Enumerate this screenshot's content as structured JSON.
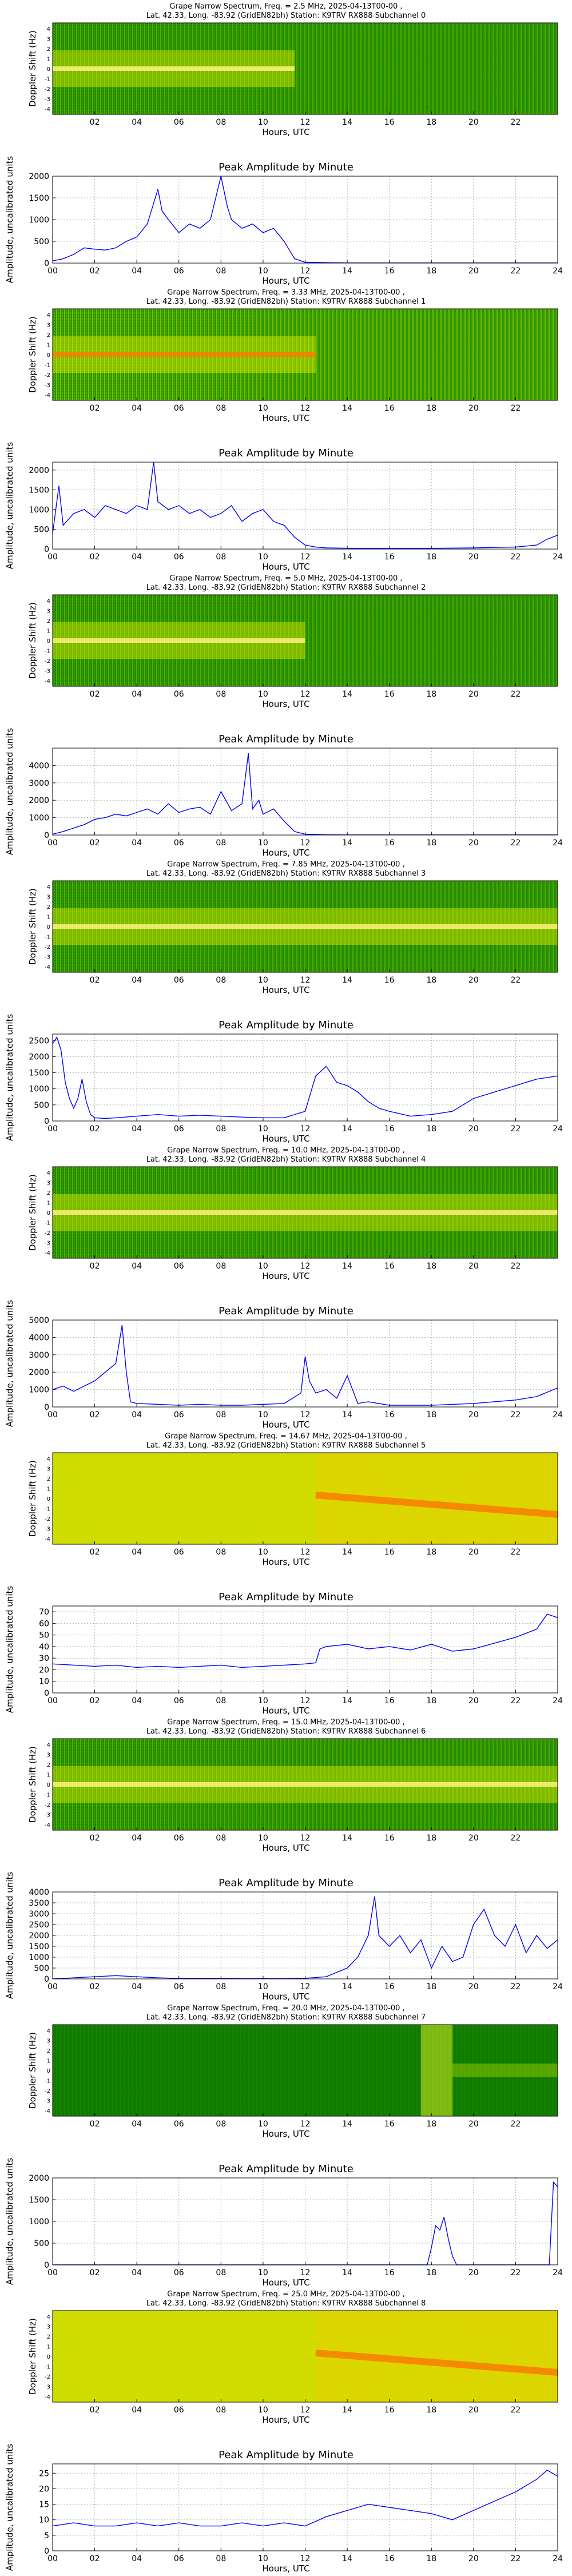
{
  "page": {
    "background": "#ffffff"
  },
  "common": {
    "xlabel": "Hours, UTC",
    "spec_ylabel": "Doppler Shift (Hz)",
    "amp_title": "Peak Amplitude by Minute",
    "amp_ylabel": "Amplitude, uncalibrated units",
    "spec_ticks": [
      "02",
      "04",
      "06",
      "08",
      "10",
      "12",
      "14",
      "16",
      "18",
      "20",
      "22"
    ],
    "spec_yticks": [
      "4",
      "3",
      "2",
      "1",
      "0",
      "-1",
      "-2",
      "-3",
      "-4"
    ],
    "amp_xticks": [
      "00",
      "02",
      "04",
      "06",
      "08",
      "10",
      "12",
      "14",
      "16",
      "18",
      "20",
      "22",
      "24"
    ],
    "line_color": "#0000ff"
  },
  "subchannels": [
    {
      "spec_title1": "Grape Narrow Spectrum, Freq. = 2.5 MHz, 2025-04-13T00-00 ,",
      "spec_title2": "Lat.  42.33, Long. -83.92 (GridEN82bh) Station: K9TRV RX888 Subchannel 0",
      "spec_style": "green",
      "active_until": 11.5,
      "chart_data": {
        "type": "line",
        "title": "Peak Amplitude by Minute",
        "xlabel": "Hours, UTC",
        "ylabel": "Amplitude, uncalibrated units",
        "xlim": [
          0,
          24
        ],
        "ylim": [
          0,
          2000
        ],
        "yticks": [
          0,
          500,
          1000,
          1500,
          2000
        ],
        "x": [
          0,
          0.5,
          1,
          1.5,
          2,
          2.5,
          3,
          3.5,
          4,
          4.5,
          5,
          5.2,
          5.5,
          6,
          6.5,
          7,
          7.5,
          8,
          8.3,
          8.5,
          9,
          9.5,
          10,
          10.5,
          11,
          11.5,
          12,
          13,
          14,
          16,
          18,
          20,
          22,
          24
        ],
        "y": [
          50,
          100,
          200,
          350,
          320,
          300,
          350,
          500,
          600,
          900,
          1700,
          1200,
          1000,
          700,
          900,
          800,
          1000,
          2000,
          1300,
          1000,
          800,
          900,
          700,
          800,
          500,
          100,
          20,
          10,
          5,
          5,
          5,
          5,
          5,
          5
        ]
      }
    },
    {
      "spec_title1": "Grape Narrow Spectrum, Freq. = 3.33 MHz, 2025-04-13T00-00 ,",
      "spec_title2": "Lat.  42.33, Long. -83.92 (GridEN82bh) Station: K9TRV RX888 Subchannel 1",
      "spec_style": "orangeline",
      "active_until": 12.5,
      "chart_data": {
        "type": "line",
        "title": "Peak Amplitude by Minute",
        "xlabel": "Hours, UTC",
        "ylabel": "Amplitude, uncalibrated units",
        "xlim": [
          0,
          24
        ],
        "ylim": [
          0,
          2200
        ],
        "yticks": [
          0,
          500,
          1000,
          1500,
          2000
        ],
        "x": [
          0,
          0.3,
          0.5,
          1,
          1.5,
          2,
          2.5,
          3,
          3.5,
          4,
          4.5,
          4.8,
          5,
          5.5,
          6,
          6.5,
          7,
          7.5,
          8,
          8.5,
          9,
          9.5,
          10,
          10.5,
          11,
          11.5,
          12,
          12.5,
          13,
          14,
          16,
          18,
          20,
          22,
          23,
          23.5,
          24
        ],
        "y": [
          400,
          1600,
          600,
          900,
          1000,
          800,
          1100,
          1000,
          900,
          1100,
          1000,
          2200,
          1200,
          1000,
          1100,
          900,
          1000,
          800,
          900,
          1100,
          700,
          900,
          1000,
          700,
          600,
          300,
          100,
          50,
          30,
          20,
          20,
          20,
          30,
          50,
          100,
          250,
          350
        ]
      }
    },
    {
      "spec_title1": "Grape Narrow Spectrum, Freq. = 5.0 MHz, 2025-04-13T00-00 ,",
      "spec_title2": "Lat.  42.33, Long. -83.92 (GridEN82bh) Station: K9TRV RX888 Subchannel 2",
      "spec_style": "green",
      "active_until": 12.0,
      "chart_data": {
        "type": "line",
        "title": "Peak Amplitude by Minute",
        "xlabel": "Hours, UTC",
        "ylabel": "Amplitude, uncalibrated units",
        "xlim": [
          0,
          24
        ],
        "ylim": [
          0,
          5000
        ],
        "yticks": [
          0,
          1000,
          2000,
          3000,
          4000
        ],
        "x": [
          0,
          0.5,
          1,
          1.5,
          2,
          2.5,
          3,
          3.5,
          4,
          4.5,
          5,
          5.5,
          6,
          6.5,
          7,
          7.5,
          8,
          8.5,
          9,
          9.3,
          9.5,
          9.8,
          10,
          10.5,
          11,
          11.5,
          12,
          13,
          14,
          16,
          18,
          20,
          22,
          24
        ],
        "y": [
          50,
          200,
          400,
          600,
          900,
          1000,
          1200,
          1100,
          1300,
          1500,
          1200,
          1800,
          1300,
          1500,
          1600,
          1200,
          2500,
          1400,
          1800,
          4700,
          1500,
          2000,
          1200,
          1500,
          800,
          200,
          50,
          20,
          10,
          10,
          10,
          10,
          10,
          10
        ]
      }
    },
    {
      "spec_title1": "Grape Narrow Spectrum, Freq. = 7.85 MHz, 2025-04-13T00-00 ,",
      "spec_title2": "Lat.  42.33, Long. -83.92 (GridEN82bh) Station: K9TRV RX888 Subchannel 3",
      "spec_style": "green",
      "active_until": 24,
      "chart_data": {
        "type": "line",
        "title": "Peak Amplitude by Minute",
        "xlabel": "Hours, UTC",
        "ylabel": "Amplitude, uncalibrated units",
        "xlim": [
          0,
          24
        ],
        "ylim": [
          0,
          2700
        ],
        "yticks": [
          0,
          500,
          1000,
          1500,
          2000,
          2500
        ],
        "x": [
          0,
          0.2,
          0.4,
          0.6,
          0.8,
          1,
          1.2,
          1.4,
          1.6,
          1.8,
          2,
          2.5,
          3,
          4,
          5,
          6,
          7,
          8,
          9,
          10,
          11,
          12,
          12.5,
          13,
          13.5,
          14,
          14.5,
          15,
          15.5,
          16,
          17,
          18,
          19,
          20,
          21,
          22,
          23,
          24
        ],
        "y": [
          2400,
          2600,
          2200,
          1200,
          700,
          400,
          700,
          1300,
          600,
          200,
          100,
          80,
          100,
          150,
          200,
          150,
          180,
          150,
          120,
          100,
          100,
          300,
          1400,
          1700,
          1200,
          1100,
          900,
          600,
          400,
          300,
          150,
          200,
          300,
          700,
          900,
          1100,
          1300,
          1400
        ]
      }
    },
    {
      "spec_title1": "Grape Narrow Spectrum, Freq. = 10.0 MHz, 2025-04-13T00-00 ,",
      "spec_title2": "Lat.  42.33, Long. -83.92 (GridEN82bh) Station: K9TRV RX888 Subchannel 4",
      "spec_style": "green",
      "active_until": 24,
      "chart_data": {
        "type": "line",
        "title": "Peak Amplitude by Minute",
        "xlabel": "Hours, UTC",
        "ylabel": "Amplitude, uncalibrated units",
        "xlim": [
          0,
          24
        ],
        "ylim": [
          0,
          5000
        ],
        "yticks": [
          0,
          1000,
          2000,
          3000,
          4000,
          5000
        ],
        "x": [
          0,
          0.5,
          1,
          1.5,
          2,
          2.5,
          3,
          3.3,
          3.5,
          3.7,
          4,
          5,
          6,
          7,
          8,
          9,
          10,
          11,
          11.8,
          12,
          12.2,
          12.5,
          13,
          13.5,
          14,
          14.5,
          15,
          16,
          18,
          20,
          22,
          23,
          24
        ],
        "y": [
          1000,
          1200,
          900,
          1200,
          1500,
          2000,
          2500,
          4700,
          2000,
          300,
          200,
          150,
          100,
          150,
          100,
          100,
          150,
          200,
          800,
          2900,
          1500,
          800,
          1000,
          500,
          1800,
          200,
          300,
          100,
          100,
          200,
          400,
          600,
          1100
        ]
      }
    },
    {
      "spec_title1": "Grape Narrow Spectrum, Freq. = 14.67 MHz, 2025-04-13T00-00 ,",
      "spec_title2": "Lat.  42.33, Long. -83.92 (GridEN82bh) Station: K9TRV RX888 Subchannel 5",
      "spec_style": "yellow",
      "active_until": 24,
      "chart_data": {
        "type": "line",
        "title": "Peak Amplitude by Minute",
        "xlabel": "Hours, UTC",
        "ylabel": "Amplitude, uncalibrated units",
        "xlim": [
          0,
          24
        ],
        "ylim": [
          0,
          75
        ],
        "yticks": [
          0,
          10,
          20,
          30,
          40,
          50,
          60,
          70
        ],
        "x": [
          0,
          1,
          2,
          3,
          4,
          5,
          6,
          7,
          8,
          9,
          10,
          11,
          12,
          12.5,
          12.7,
          13,
          14,
          15,
          16,
          17,
          18,
          19,
          20,
          21,
          22,
          23,
          23.5,
          24
        ],
        "y": [
          25,
          24,
          23,
          24,
          22,
          23,
          22,
          23,
          24,
          22,
          23,
          24,
          25,
          26,
          38,
          40,
          42,
          38,
          40,
          37,
          42,
          36,
          38,
          43,
          48,
          55,
          68,
          65
        ]
      }
    },
    {
      "spec_title1": "Grape Narrow Spectrum, Freq. = 15.0 MHz, 2025-04-13T00-00 ,",
      "spec_title2": "Lat.  42.33, Long. -83.92 (GridEN82bh) Station: K9TRV RX888 Subchannel 6",
      "spec_style": "green",
      "active_until": 24,
      "chart_data": {
        "type": "line",
        "title": "Peak Amplitude by Minute",
        "xlabel": "Hours, UTC",
        "ylabel": "Amplitude, uncalibrated units",
        "xlim": [
          0,
          24
        ],
        "ylim": [
          0,
          4000
        ],
        "yticks": [
          0,
          500,
          1000,
          1500,
          2000,
          2500,
          3000,
          3500,
          4000
        ],
        "x": [
          0,
          1,
          2,
          3,
          4,
          5,
          6,
          7,
          8,
          9,
          10,
          11,
          12,
          13,
          14,
          14.5,
          15,
          15.3,
          15.5,
          16,
          16.5,
          17,
          17.5,
          18,
          18.5,
          19,
          19.5,
          20,
          20.5,
          21,
          21.5,
          22,
          22.5,
          23,
          23.5,
          24
        ],
        "y": [
          0,
          50,
          100,
          150,
          100,
          50,
          20,
          20,
          20,
          10,
          10,
          10,
          30,
          100,
          500,
          1000,
          2000,
          3800,
          2000,
          1500,
          2000,
          1200,
          1800,
          500,
          1500,
          800,
          1000,
          2500,
          3200,
          2000,
          1500,
          2500,
          1200,
          2000,
          1400,
          1800
        ]
      }
    },
    {
      "spec_title1": "Grape Narrow Spectrum, Freq. = 20.0 MHz, 2025-04-13T00-00 ,",
      "spec_title2": "Lat.  42.33, Long. -83.92 (GridEN82bh) Station: K9TRV RX888 Subchannel 7",
      "spec_style": "darkgreen",
      "active_until": 24,
      "chart_data": {
        "type": "line",
        "title": "Peak Amplitude by Minute",
        "xlabel": "Hours, UTC",
        "ylabel": "Amplitude, uncalibrated units",
        "xlim": [
          0,
          24
        ],
        "ylim": [
          0,
          2000
        ],
        "yticks": [
          0,
          500,
          1000,
          1500,
          2000
        ],
        "x": [
          0,
          4,
          8,
          12,
          16,
          17.8,
          18,
          18.2,
          18.4,
          18.6,
          18.8,
          19,
          19.2,
          20,
          22,
          23.6,
          23.8,
          24
        ],
        "y": [
          0,
          0,
          0,
          0,
          0,
          0,
          400,
          900,
          800,
          1100,
          600,
          200,
          0,
          0,
          0,
          0,
          1900,
          1800
        ]
      }
    },
    {
      "spec_title1": "Grape Narrow Spectrum, Freq. = 25.0 MHz, 2025-04-13T00-00 ,",
      "spec_title2": "Lat.  42.33, Long. -83.92 (GridEN82bh) Station: K9TRV RX888 Subchannel 8",
      "spec_style": "yellow",
      "active_until": 24,
      "chart_data": {
        "type": "line",
        "title": "Peak Amplitude by Minute",
        "xlabel": "Hours, UTC",
        "ylabel": "Amplitude, uncalibrated units",
        "xlim": [
          0,
          24
        ],
        "ylim": [
          0,
          28
        ],
        "yticks": [
          0,
          5,
          10,
          15,
          20,
          25
        ],
        "x": [
          0,
          1,
          2,
          3,
          4,
          5,
          6,
          7,
          8,
          9,
          10,
          11,
          12,
          13,
          14,
          15,
          16,
          17,
          18,
          19,
          20,
          21,
          22,
          23,
          23.5,
          24
        ],
        "y": [
          8,
          9,
          8,
          8,
          9,
          8,
          9,
          8,
          8,
          9,
          8,
          9,
          8,
          11,
          13,
          15,
          14,
          13,
          12,
          10,
          13,
          16,
          19,
          23,
          26,
          24
        ]
      }
    }
  ]
}
